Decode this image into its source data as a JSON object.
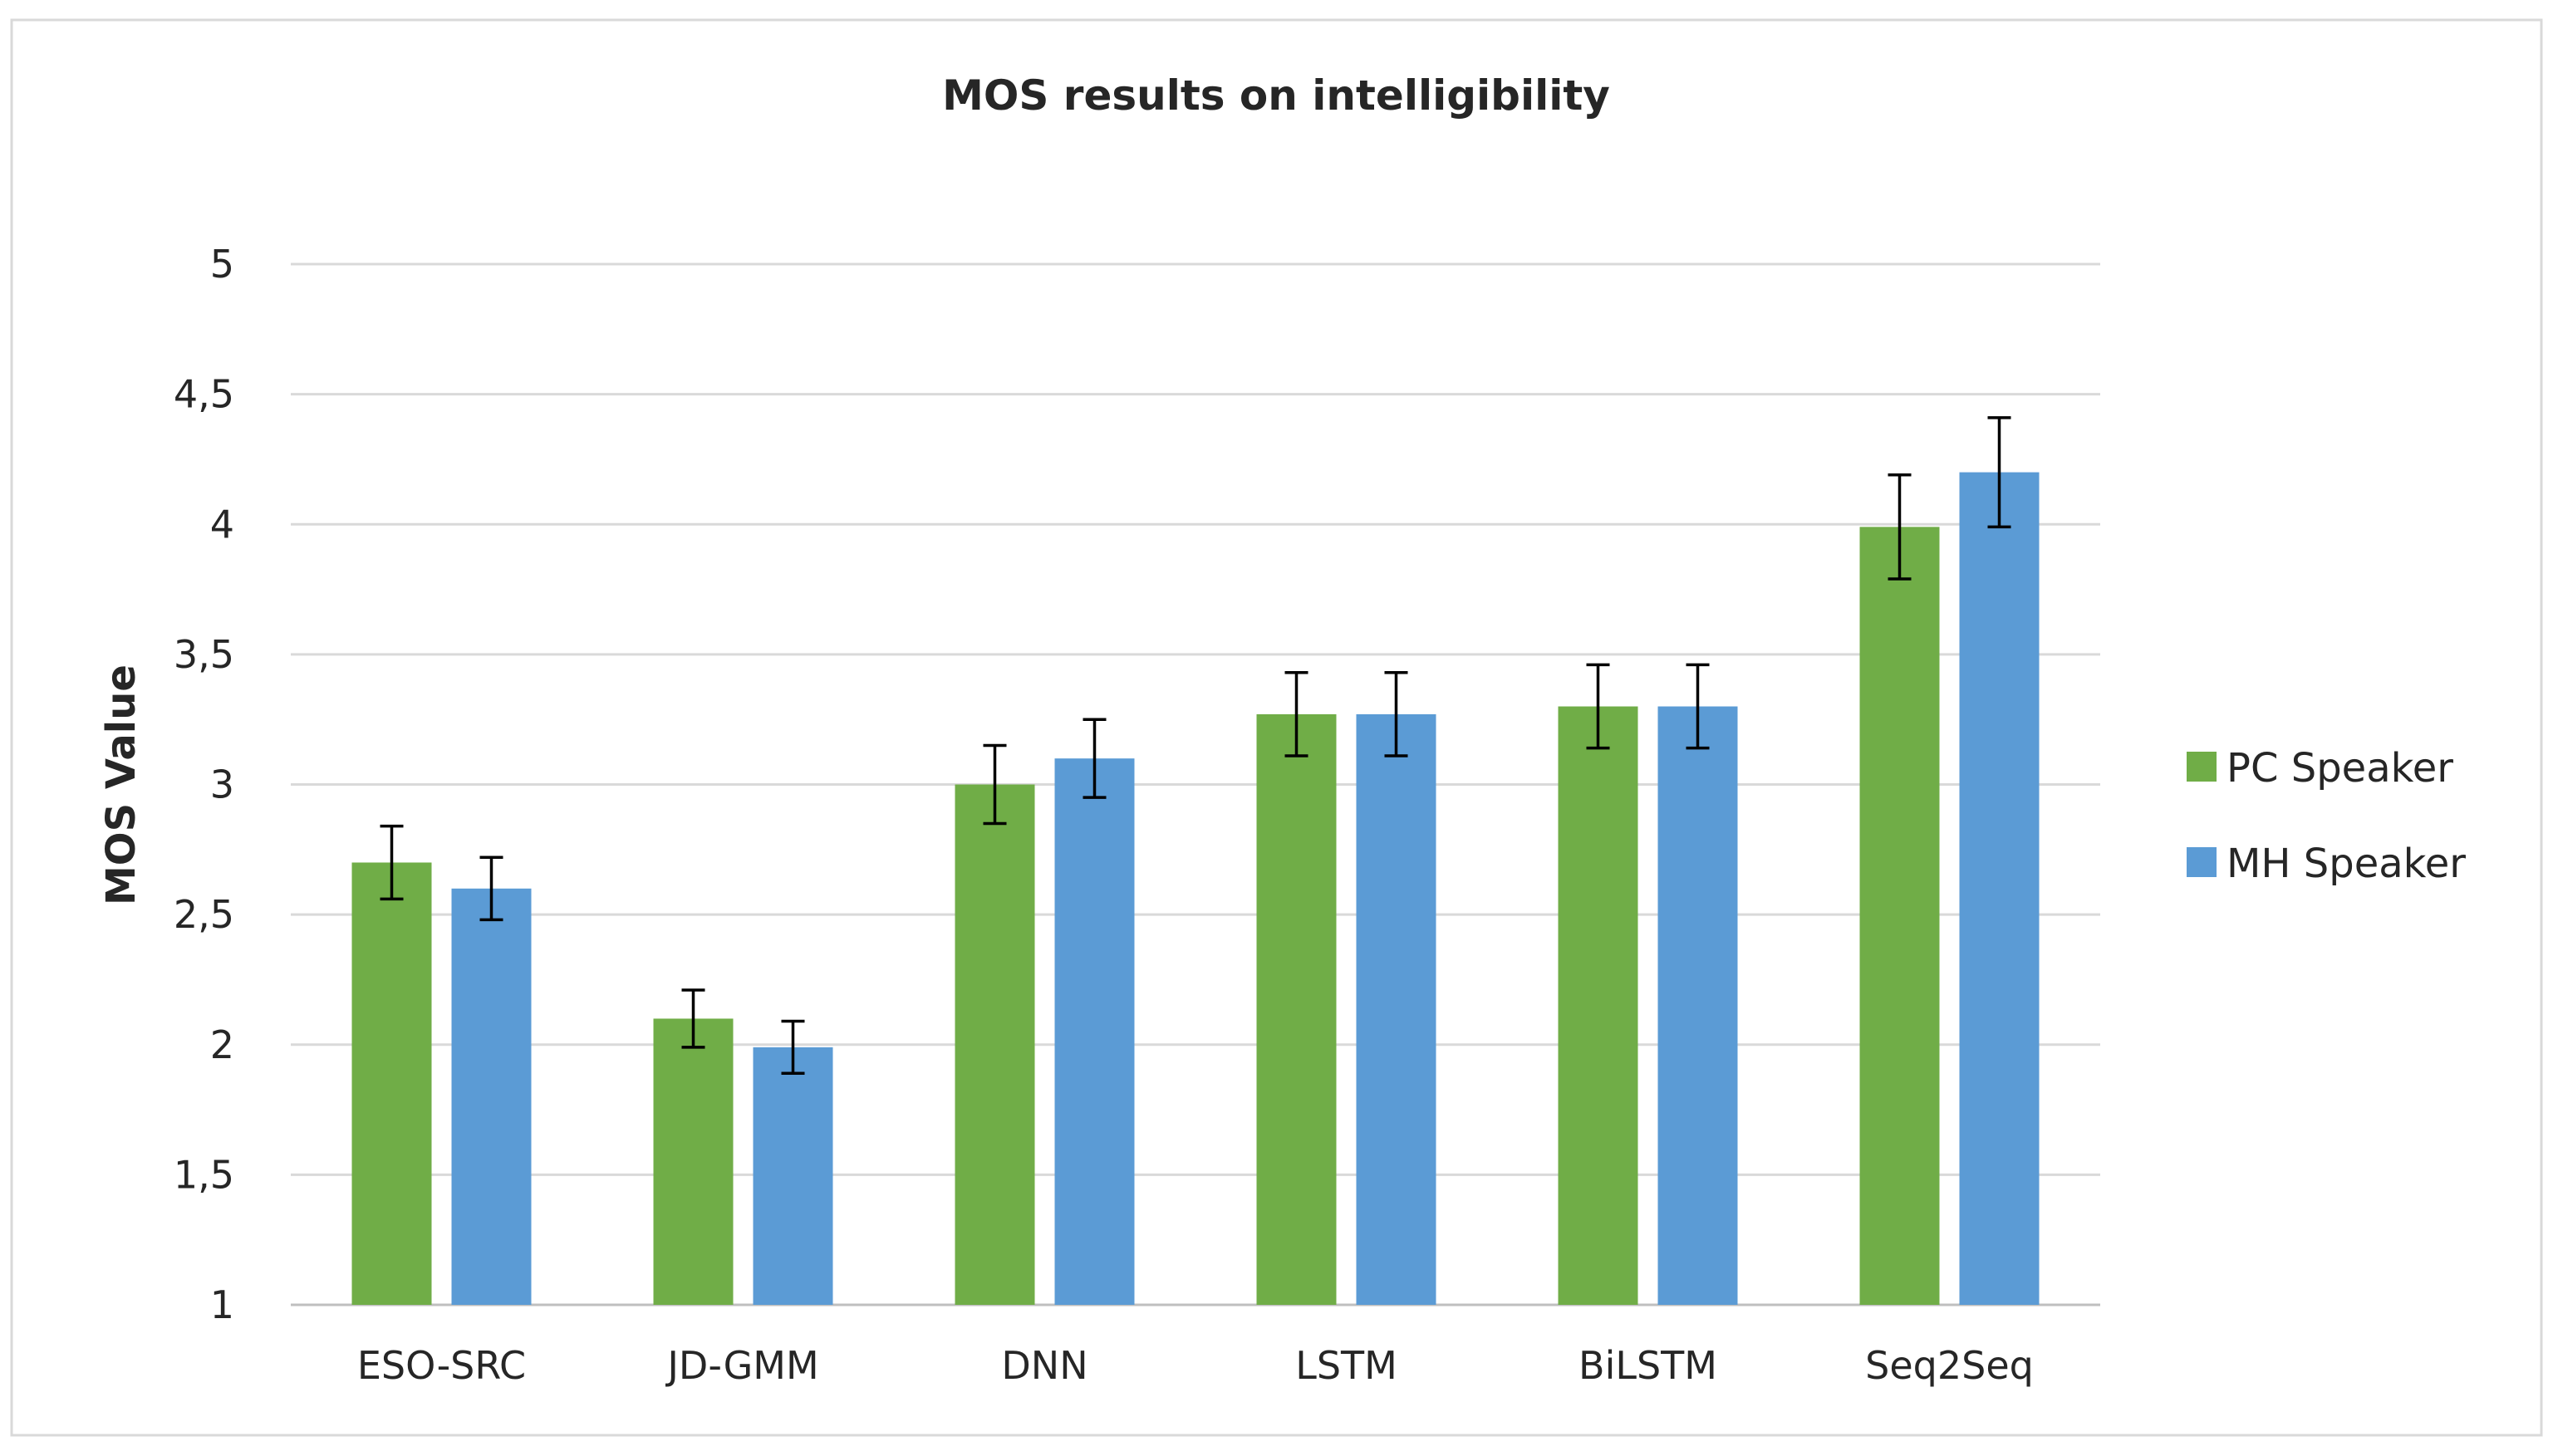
{
  "chart_data": {
    "type": "bar",
    "title": "MOS results on intelligibility",
    "xlabel": "",
    "ylabel": "MOS Value",
    "ylim": [
      1,
      5
    ],
    "y_ticks": [
      {
        "value": 1,
        "label": "1"
      },
      {
        "value": 1.5,
        "label": "1,5"
      },
      {
        "value": 2,
        "label": "2"
      },
      {
        "value": 2.5,
        "label": "2,5"
      },
      {
        "value": 3,
        "label": "3"
      },
      {
        "value": 3.5,
        "label": "3,5"
      },
      {
        "value": 4,
        "label": "4"
      },
      {
        "value": 4.5,
        "label": "4,5"
      },
      {
        "value": 5,
        "label": "5"
      }
    ],
    "grid": true,
    "legend_position": "right",
    "categories": [
      "ESO-SRC",
      "JD-GMM",
      "DNN",
      "LSTM",
      "BiLSTM",
      "Seq2Seq"
    ],
    "series": [
      {
        "name": "PC Speaker",
        "color": "#70AD47",
        "values": [
          2.7,
          2.1,
          3.0,
          3.27,
          3.3,
          3.99
        ],
        "error": [
          0.14,
          0.11,
          0.15,
          0.16,
          0.16,
          0.2
        ]
      },
      {
        "name": "MH Speaker",
        "color": "#5B9BD5",
        "values": [
          2.6,
          1.99,
          3.1,
          3.27,
          3.3,
          4.2
        ],
        "error": [
          0.12,
          0.1,
          0.15,
          0.16,
          0.16,
          0.21
        ]
      }
    ]
  },
  "colors": {
    "grid": "#D9D9D9",
    "axis": "#BFBFBF",
    "text": "#262626",
    "border": "#D9D9D9",
    "error_bar": "#000000"
  }
}
